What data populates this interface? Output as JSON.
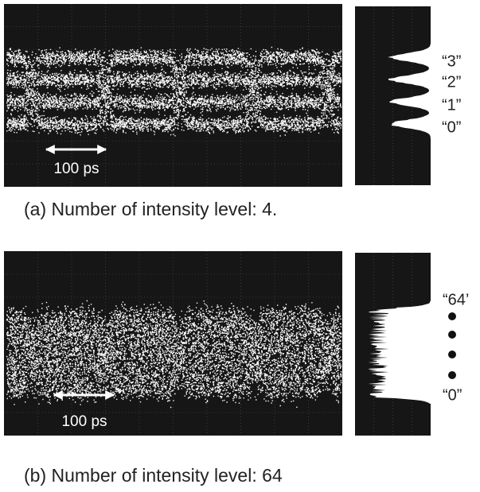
{
  "panels": [
    {
      "scale_label": "100 ps",
      "level_labels": [
        "“3”",
        "“2”",
        "“1”",
        "“0”"
      ],
      "caption": "(a) Number of intensity level: 4."
    },
    {
      "scale_label": "100 ps",
      "level_labels": [
        "“64’",
        "“0”"
      ],
      "caption": "(b) Number of intensity level: 64"
    }
  ]
}
